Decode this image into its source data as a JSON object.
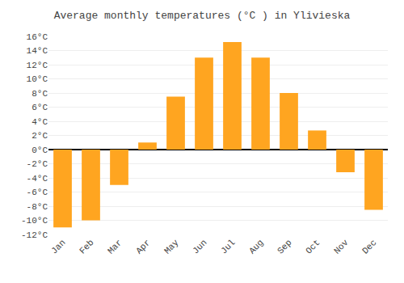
{
  "chart_data": {
    "type": "bar",
    "title": "Average monthly temperatures (°C ) in Ylivieska",
    "categories": [
      "Jan",
      "Feb",
      "Mar",
      "Apr",
      "May",
      "Jun",
      "Jul",
      "Aug",
      "Sep",
      "Oct",
      "Nov",
      "Dec"
    ],
    "values": [
      -11,
      -10,
      -5,
      1,
      7.5,
      13,
      15.2,
      13,
      8,
      2.7,
      -3.2,
      -8.5
    ],
    "color": "#FFA520",
    "ylim": [
      -12,
      16
    ],
    "yticks": [
      {
        "value": -12,
        "label": "-12°C"
      },
      {
        "value": -10,
        "label": "-10°C"
      },
      {
        "value": -8,
        "label": "-8°C"
      },
      {
        "value": -6,
        "label": "-6°C"
      },
      {
        "value": -4,
        "label": "-4°C"
      },
      {
        "value": -2,
        "label": "-2°C"
      },
      {
        "value": 0,
        "label": "0°C"
      },
      {
        "value": 2,
        "label": "2°C"
      },
      {
        "value": 4,
        "label": "4°C"
      },
      {
        "value": 6,
        "label": "6°C"
      },
      {
        "value": 8,
        "label": "8°C"
      },
      {
        "value": 10,
        "label": "10°C"
      },
      {
        "value": 12,
        "label": "12°C"
      },
      {
        "value": 14,
        "label": "14°C"
      },
      {
        "value": 16,
        "label": "16°C"
      }
    ],
    "grid": true
  }
}
